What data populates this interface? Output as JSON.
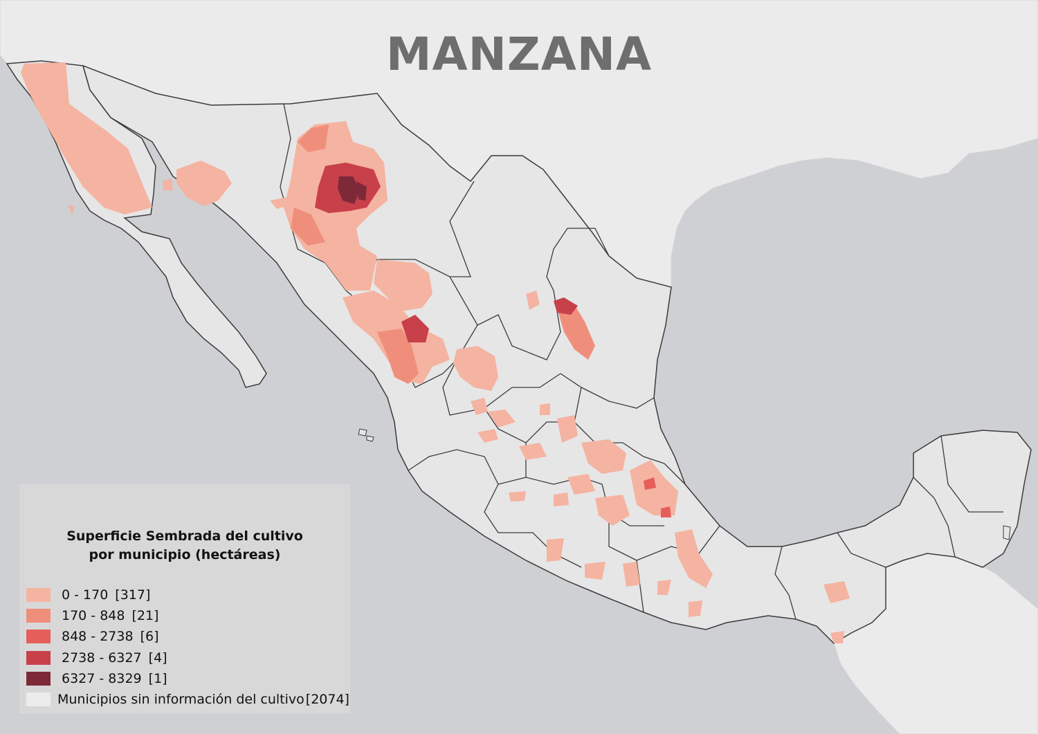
{
  "title": "MANZANA",
  "legend": {
    "title_line1": "Superficie Sembrada del cultivo",
    "title_line2": "por municipio (hectáreas)",
    "classes": [
      {
        "label": "0 - 170",
        "count": "[317]",
        "color": "#f5b3a1"
      },
      {
        "label": "170 - 848",
        "count": "[21]",
        "color": "#f08e7c"
      },
      {
        "label": "848 - 2738",
        "count": "[6]",
        "color": "#e55e5a"
      },
      {
        "label": "2738 - 6327",
        "count": "[4]",
        "color": "#c8404a"
      },
      {
        "label": "6327 - 8329",
        "count": "[1]",
        "color": "#7e2938"
      }
    ],
    "no_data": {
      "label": "Municipios sin información del cultivo",
      "count": "[2074]",
      "color": "#ececec"
    }
  },
  "colors": {
    "sea": "#cfd0d3",
    "land_other": "#ececec",
    "mexico_land": "#e6e6e6",
    "state_border": "#3a3a3a",
    "title": "#6e6e6e"
  }
}
